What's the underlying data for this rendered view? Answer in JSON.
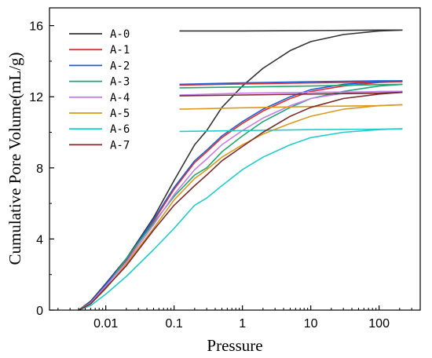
{
  "chart_data": {
    "type": "line",
    "xlabel": "Pressure",
    "ylabel": "Cumulative Pore Volume(mL/g)",
    "x_scale": "log",
    "xlim": [
      0.0015,
      400
    ],
    "ylim": [
      0,
      17
    ],
    "x_ticks": [
      0.01,
      0.1,
      1,
      10,
      100
    ],
    "x_tick_labels": [
      "0.01",
      "0.1",
      "1",
      "10",
      "100"
    ],
    "y_ticks": [
      0,
      4,
      8,
      12,
      16
    ],
    "y_tick_labels": [
      "0",
      "4",
      "8",
      "12",
      "16"
    ],
    "grid": false,
    "legend_position": "top-left",
    "series": [
      {
        "name": "A-0",
        "color": "#333333",
        "intrusion": [
          [
            0.004,
            0
          ],
          [
            0.006,
            0.5
          ],
          [
            0.01,
            1.5
          ],
          [
            0.02,
            2.9
          ],
          [
            0.05,
            5.2
          ],
          [
            0.1,
            7.3
          ],
          [
            0.2,
            9.3
          ],
          [
            0.3,
            10.1
          ],
          [
            0.5,
            11.4
          ],
          [
            1,
            12.6
          ],
          [
            2,
            13.6
          ],
          [
            5,
            14.6
          ],
          [
            10,
            15.1
          ],
          [
            30,
            15.5
          ],
          [
            100,
            15.7
          ],
          [
            220,
            15.75
          ]
        ],
        "extrusion": [
          [
            220,
            15.75
          ],
          [
            100,
            15.75
          ],
          [
            10,
            15.72
          ],
          [
            1,
            15.7
          ],
          [
            0.12,
            15.7
          ]
        ]
      },
      {
        "name": "A-1",
        "color": "#e63030",
        "intrusion": [
          [
            0.004,
            0
          ],
          [
            0.006,
            0.4
          ],
          [
            0.01,
            1.4
          ],
          [
            0.02,
            2.8
          ],
          [
            0.05,
            5.0
          ],
          [
            0.1,
            6.8
          ],
          [
            0.2,
            8.3
          ],
          [
            0.3,
            8.9
          ],
          [
            0.5,
            9.7
          ],
          [
            1,
            10.5
          ],
          [
            2,
            11.2
          ],
          [
            5,
            11.9
          ],
          [
            10,
            12.3
          ],
          [
            30,
            12.6
          ],
          [
            100,
            12.8
          ],
          [
            220,
            12.85
          ]
        ],
        "extrusion": [
          [
            220,
            12.85
          ],
          [
            100,
            12.83
          ],
          [
            10,
            12.78
          ],
          [
            1,
            12.72
          ],
          [
            0.12,
            12.65
          ]
        ]
      },
      {
        "name": "A-2",
        "color": "#1f5fd6",
        "intrusion": [
          [
            0.004,
            0
          ],
          [
            0.006,
            0.45
          ],
          [
            0.01,
            1.45
          ],
          [
            0.02,
            2.85
          ],
          [
            0.05,
            5.1
          ],
          [
            0.1,
            6.9
          ],
          [
            0.2,
            8.4
          ],
          [
            0.3,
            9.0
          ],
          [
            0.5,
            9.8
          ],
          [
            1,
            10.6
          ],
          [
            2,
            11.3
          ],
          [
            5,
            12.0
          ],
          [
            10,
            12.4
          ],
          [
            30,
            12.7
          ],
          [
            100,
            12.85
          ],
          [
            220,
            12.9
          ]
        ],
        "extrusion": [
          [
            220,
            12.9
          ],
          [
            100,
            12.9
          ],
          [
            10,
            12.85
          ],
          [
            1,
            12.78
          ],
          [
            0.12,
            12.7
          ]
        ]
      },
      {
        "name": "A-3",
        "color": "#1fa870",
        "intrusion": [
          [
            0.004,
            0
          ],
          [
            0.006,
            0.4
          ],
          [
            0.01,
            1.3
          ],
          [
            0.02,
            2.9
          ],
          [
            0.05,
            4.9
          ],
          [
            0.1,
            6.4
          ],
          [
            0.2,
            7.6
          ],
          [
            0.3,
            8.0
          ],
          [
            0.5,
            8.9
          ],
          [
            1,
            9.8
          ],
          [
            2,
            10.6
          ],
          [
            5,
            11.4
          ],
          [
            10,
            11.9
          ],
          [
            30,
            12.3
          ],
          [
            100,
            12.6
          ],
          [
            220,
            12.7
          ]
        ],
        "extrusion": [
          [
            220,
            12.7
          ],
          [
            100,
            12.68
          ],
          [
            10,
            12.6
          ],
          [
            1,
            12.55
          ],
          [
            0.12,
            12.5
          ]
        ]
      },
      {
        "name": "A-4",
        "color": "#c77ee8",
        "intrusion": [
          [
            0.004,
            0
          ],
          [
            0.006,
            0.4
          ],
          [
            0.01,
            1.35
          ],
          [
            0.02,
            2.7
          ],
          [
            0.05,
            4.8
          ],
          [
            0.1,
            6.5
          ],
          [
            0.2,
            7.9
          ],
          [
            0.3,
            8.5
          ],
          [
            0.5,
            9.3
          ],
          [
            1,
            10.1
          ],
          [
            2,
            10.8
          ],
          [
            5,
            11.5
          ],
          [
            10,
            11.9
          ],
          [
            30,
            12.2
          ],
          [
            100,
            12.3
          ],
          [
            220,
            12.3
          ]
        ],
        "extrusion": [
          [
            220,
            12.3
          ],
          [
            100,
            12.28
          ],
          [
            10,
            12.25
          ],
          [
            1,
            12.2
          ],
          [
            0.12,
            12.1
          ]
        ]
      },
      {
        "name": "A-5",
        "color": "#d99a1f",
        "intrusion": [
          [
            0.004,
            0
          ],
          [
            0.006,
            0.35
          ],
          [
            0.01,
            1.2
          ],
          [
            0.02,
            2.6
          ],
          [
            0.05,
            4.6
          ],
          [
            0.1,
            6.2
          ],
          [
            0.2,
            7.4
          ],
          [
            0.3,
            7.9
          ],
          [
            0.5,
            8.6
          ],
          [
            1,
            9.3
          ],
          [
            2,
            9.9
          ],
          [
            5,
            10.5
          ],
          [
            10,
            10.9
          ],
          [
            30,
            11.3
          ],
          [
            100,
            11.5
          ],
          [
            220,
            11.55
          ]
        ],
        "extrusion": [
          [
            220,
            11.55
          ],
          [
            100,
            11.5
          ],
          [
            10,
            11.45
          ],
          [
            1,
            11.38
          ],
          [
            0.12,
            11.3
          ]
        ]
      },
      {
        "name": "A-6",
        "color": "#22cccc",
        "intrusion": [
          [
            0.004,
            0
          ],
          [
            0.006,
            0.25
          ],
          [
            0.01,
            0.9
          ],
          [
            0.02,
            1.9
          ],
          [
            0.05,
            3.4
          ],
          [
            0.1,
            4.6
          ],
          [
            0.2,
            5.9
          ],
          [
            0.3,
            6.3
          ],
          [
            0.5,
            7.0
          ],
          [
            1,
            7.9
          ],
          [
            2,
            8.6
          ],
          [
            5,
            9.3
          ],
          [
            10,
            9.7
          ],
          [
            30,
            10.0
          ],
          [
            100,
            10.15
          ],
          [
            220,
            10.2
          ]
        ],
        "extrusion": [
          [
            220,
            10.2
          ],
          [
            100,
            10.18
          ],
          [
            10,
            10.15
          ],
          [
            1,
            10.1
          ],
          [
            0.12,
            10.05
          ]
        ]
      },
      {
        "name": "A-7",
        "color": "#7a2b2b",
        "intrusion": [
          [
            0.004,
            0
          ],
          [
            0.006,
            0.35
          ],
          [
            0.01,
            1.25
          ],
          [
            0.02,
            2.5
          ],
          [
            0.05,
            4.5
          ],
          [
            0.1,
            5.9
          ],
          [
            0.2,
            7.0
          ],
          [
            0.3,
            7.6
          ],
          [
            0.5,
            8.4
          ],
          [
            1,
            9.2
          ],
          [
            2,
            10.0
          ],
          [
            5,
            10.9
          ],
          [
            10,
            11.4
          ],
          [
            30,
            11.9
          ],
          [
            100,
            12.15
          ],
          [
            220,
            12.25
          ]
        ],
        "extrusion": [
          [
            220,
            12.25
          ],
          [
            100,
            12.2
          ],
          [
            10,
            12.15
          ],
          [
            1,
            12.1
          ],
          [
            0.12,
            12.05
          ]
        ]
      }
    ]
  }
}
